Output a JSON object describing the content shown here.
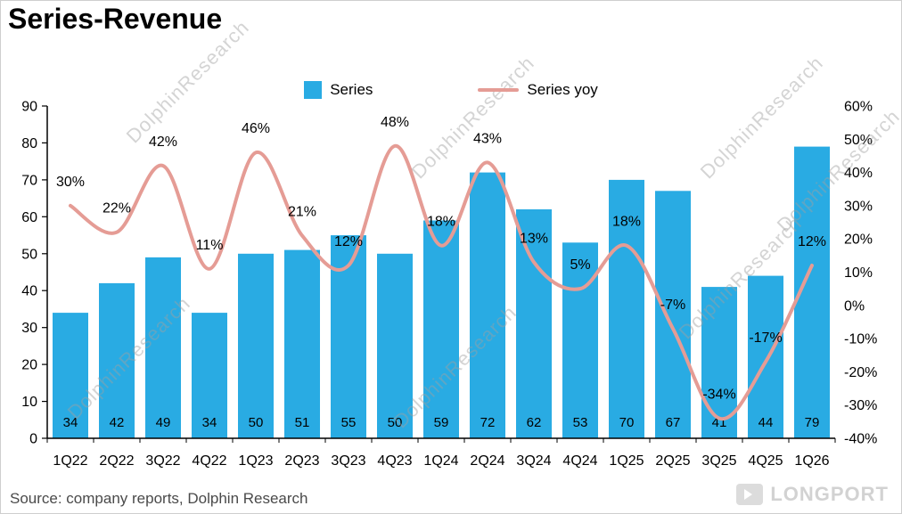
{
  "title": "Series-Revenue",
  "watermark": "DolphinResearch",
  "source_note": "Source: company reports, Dolphin Research",
  "brand": "LONGPORT",
  "legend": [
    {
      "label": "Series"
    },
    {
      "label": "Series yoy"
    }
  ],
  "chart_data": {
    "type": "bar+line",
    "title": "Series-Revenue",
    "grid": false,
    "legend_position": "top-center",
    "categories": [
      "1Q22",
      "2Q22",
      "3Q22",
      "4Q22",
      "1Q23",
      "2Q23",
      "3Q23",
      "4Q23",
      "1Q24",
      "2Q24",
      "3Q24",
      "4Q24",
      "1Q25",
      "2Q25",
      "3Q25",
      "4Q25",
      "1Q26"
    ],
    "series": [
      {
        "name": "Series",
        "type": "bar",
        "axis": "left",
        "color": "#29ABE3",
        "values": [
          34,
          42,
          49,
          34,
          50,
          51,
          55,
          50,
          59,
          72,
          62,
          53,
          70,
          67,
          41,
          44,
          79
        ]
      },
      {
        "name": "Series yoy",
        "type": "line",
        "axis": "right",
        "color": "#E59C95",
        "values_pct": [
          30,
          22,
          42,
          11,
          46,
          21,
          12,
          48,
          18,
          43,
          13,
          5,
          18,
          -7,
          -34,
          -17,
          12
        ],
        "point_labels": [
          "30%",
          "22%",
          "42%",
          "11%",
          "46%",
          "21%",
          "12%",
          "48%",
          "18%",
          "43%",
          "13%",
          "5%",
          "18%",
          "-7%",
          "-34%",
          "-17%",
          "12%"
        ]
      }
    ],
    "left_axis": {
      "min": 0,
      "max": 90,
      "ticks": [
        "0",
        "10",
        "20",
        "30",
        "40",
        "50",
        "60",
        "70",
        "80",
        "90"
      ]
    },
    "right_axis": {
      "min": -40,
      "max": 60,
      "ticks": [
        "-40%",
        "-30%",
        "-20%",
        "-10%",
        "0%",
        "10%",
        "20%",
        "30%",
        "40%",
        "50%",
        "60%"
      ]
    }
  }
}
